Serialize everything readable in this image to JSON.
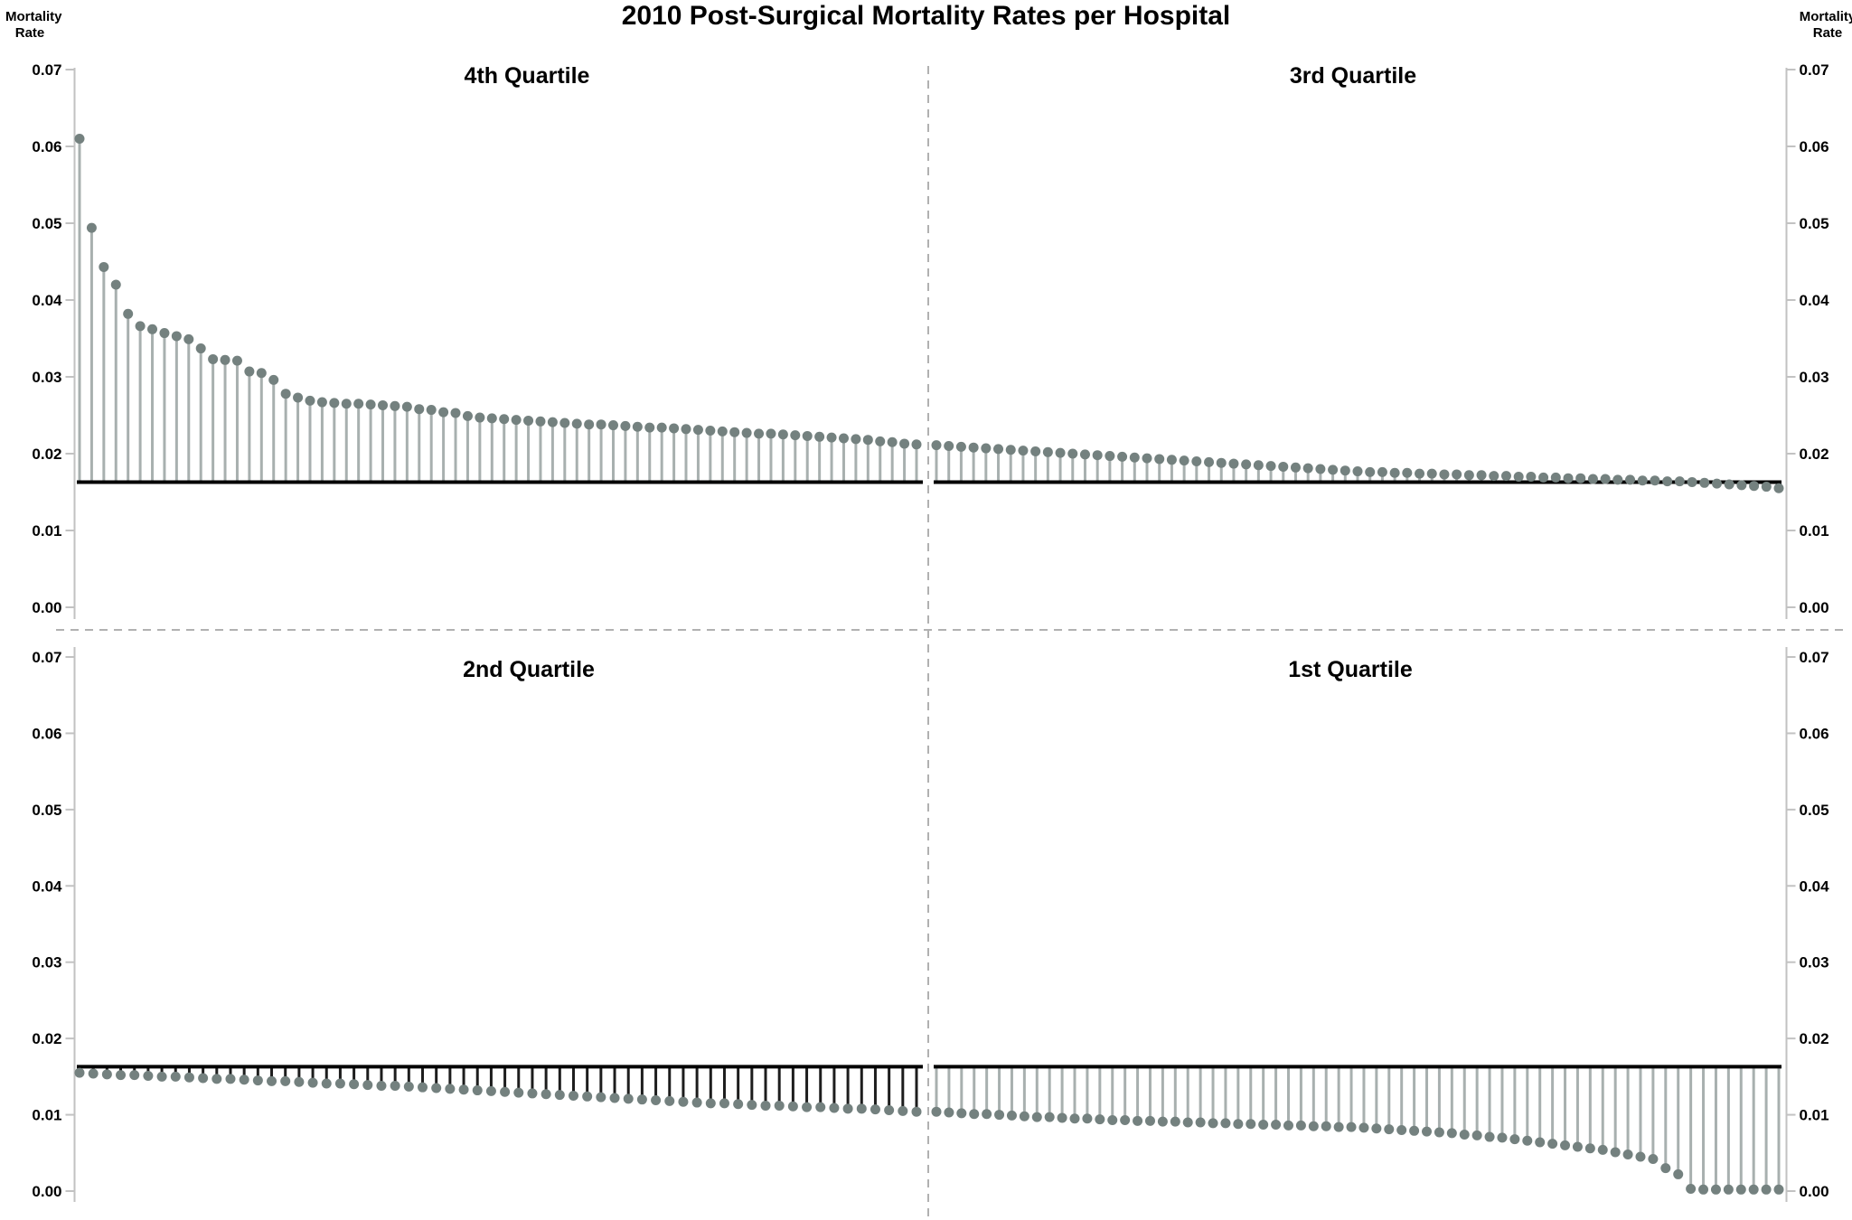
{
  "page": {
    "title": "2010 Post-Surgical Mortality Rates per Hospital"
  },
  "axes": {
    "y_label_left": "Mortality\nRate",
    "y_label_right": "Mortality\nRate",
    "tick_labels": [
      "0.07",
      "0.06",
      "0.05",
      "0.04",
      "0.03",
      "0.02",
      "0.01",
      "0.00"
    ],
    "tick_values": [
      0.07,
      0.06,
      0.05,
      0.04,
      0.03,
      0.02,
      0.01,
      0.0
    ]
  },
  "colors": {
    "dot": "#74817f",
    "stem": "#a8b0af",
    "stem_dark": "#1d1d1d",
    "baseline": "#000000",
    "axis": "#c2c2c2",
    "dashed": "#b1b1b1",
    "text": "#000000"
  },
  "chart_data": {
    "type": "scatter",
    "style": "lollipop-stem-plot",
    "title": "2010 Post-Surgical Mortality Rates per Hospital",
    "xlabel": "",
    "ylabel": "Mortality Rate",
    "ylim": [
      0,
      0.07
    ],
    "grid": false,
    "legend": "none",
    "reference_line_value": 0.0163,
    "reference_line_note": "overall mean mortality rate shown as solid black line in every quadrant",
    "panels": [
      {
        "name": "4th Quartile",
        "position": "top-left",
        "stem_style": "gray",
        "values": [
          0.061,
          0.0494,
          0.0443,
          0.042,
          0.0382,
          0.0366,
          0.0362,
          0.0357,
          0.0353,
          0.0349,
          0.0337,
          0.0323,
          0.0322,
          0.0321,
          0.0307,
          0.0305,
          0.0296,
          0.0278,
          0.0273,
          0.0269,
          0.0267,
          0.0266,
          0.0265,
          0.0265,
          0.0264,
          0.0263,
          0.0262,
          0.0261,
          0.0258,
          0.0257,
          0.0254,
          0.0253,
          0.0249,
          0.0247,
          0.0246,
          0.0245,
          0.0244,
          0.0243,
          0.0242,
          0.0241,
          0.024,
          0.0239,
          0.0238,
          0.0238,
          0.0237,
          0.0236,
          0.0235,
          0.0234,
          0.0234,
          0.0233,
          0.0232,
          0.0231,
          0.023,
          0.0229,
          0.0228,
          0.0227,
          0.0226,
          0.0226,
          0.0225,
          0.0224,
          0.0223,
          0.0222,
          0.0221,
          0.022,
          0.0219,
          0.0218,
          0.0216,
          0.0215,
          0.0213,
          0.0212
        ]
      },
      {
        "name": "3rd Quartile",
        "position": "top-right",
        "stem_style": "gray",
        "values": [
          0.0211,
          0.021,
          0.0209,
          0.0208,
          0.0207,
          0.0206,
          0.0205,
          0.0204,
          0.0203,
          0.0202,
          0.0201,
          0.02,
          0.0199,
          0.0198,
          0.0197,
          0.0196,
          0.0195,
          0.0194,
          0.0193,
          0.0192,
          0.0191,
          0.019,
          0.0189,
          0.0188,
          0.0187,
          0.0186,
          0.0185,
          0.0184,
          0.0183,
          0.0182,
          0.0181,
          0.018,
          0.0179,
          0.0178,
          0.0177,
          0.0176,
          0.0176,
          0.0175,
          0.0175,
          0.0174,
          0.0174,
          0.0173,
          0.0173,
          0.0172,
          0.0172,
          0.0171,
          0.0171,
          0.017,
          0.017,
          0.0169,
          0.0169,
          0.0168,
          0.0168,
          0.0167,
          0.0167,
          0.0166,
          0.0166,
          0.0165,
          0.0165,
          0.0164,
          0.0164,
          0.0163,
          0.0162,
          0.0161,
          0.016,
          0.0159,
          0.0158,
          0.0157,
          0.0155
        ]
      },
      {
        "name": "2nd Quartile",
        "position": "bottom-left",
        "stem_style": "dark",
        "values": [
          0.0155,
          0.0154,
          0.0153,
          0.0152,
          0.0152,
          0.0151,
          0.015,
          0.015,
          0.0149,
          0.0148,
          0.0147,
          0.0147,
          0.0146,
          0.0145,
          0.0144,
          0.0144,
          0.0143,
          0.0142,
          0.0141,
          0.0141,
          0.014,
          0.0139,
          0.0138,
          0.0138,
          0.0137,
          0.0136,
          0.0135,
          0.0134,
          0.0133,
          0.0132,
          0.0131,
          0.013,
          0.0129,
          0.0128,
          0.0127,
          0.0126,
          0.0125,
          0.0124,
          0.0123,
          0.0122,
          0.0121,
          0.012,
          0.0119,
          0.0118,
          0.0117,
          0.0116,
          0.0115,
          0.0115,
          0.0114,
          0.0113,
          0.0112,
          0.0112,
          0.0111,
          0.011,
          0.011,
          0.0109,
          0.0108,
          0.0108,
          0.0107,
          0.0106,
          0.0105,
          0.0104
        ]
      },
      {
        "name": "1st Quartile",
        "position": "bottom-right",
        "stem_style": "gray",
        "values": [
          0.0104,
          0.0103,
          0.0102,
          0.0101,
          0.0101,
          0.01,
          0.0099,
          0.0098,
          0.0097,
          0.0097,
          0.0096,
          0.0095,
          0.0095,
          0.0094,
          0.0093,
          0.0093,
          0.0092,
          0.0092,
          0.0091,
          0.0091,
          0.009,
          0.009,
          0.0089,
          0.0089,
          0.0088,
          0.0088,
          0.0087,
          0.0087,
          0.0086,
          0.0086,
          0.0085,
          0.0085,
          0.0084,
          0.0084,
          0.0083,
          0.0082,
          0.0081,
          0.008,
          0.0079,
          0.0078,
          0.0077,
          0.0076,
          0.0074,
          0.0073,
          0.0071,
          0.007,
          0.0068,
          0.0066,
          0.0064,
          0.0062,
          0.006,
          0.0058,
          0.0056,
          0.0054,
          0.0051,
          0.0048,
          0.0045,
          0.0042,
          0.003,
          0.0022,
          0.0003,
          0.0002,
          0.0002,
          0.0002,
          0.0002,
          0.0002,
          0.0002,
          0.0002
        ]
      }
    ]
  }
}
